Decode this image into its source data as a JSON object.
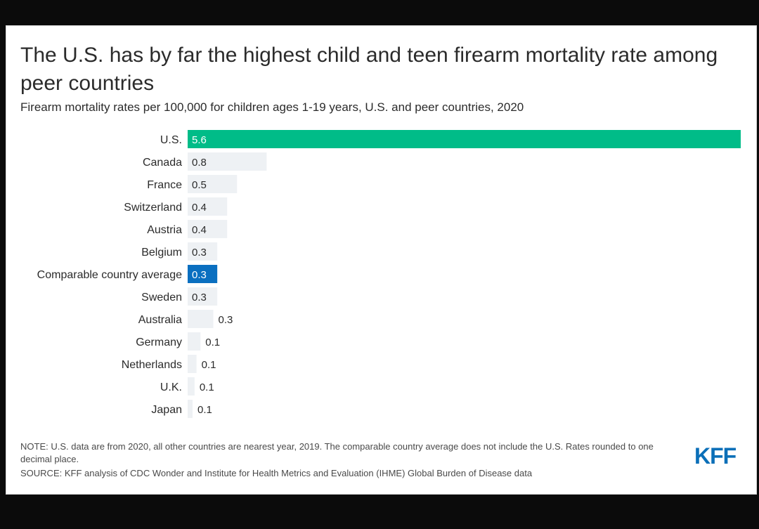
{
  "title": "The U.S. has by far the highest child and teen firearm mortality rate among peer countries",
  "subtitle": "Firearm mortality rates per 100,000 for children ages 1-19 years, U.S. and peer countries, 2020",
  "note": "NOTE: U.S. data are from 2020, all other countries are nearest year, 2019. The comparable country average does not include the U.S. Rates rounded to one decimal place.",
  "source": "SOURCE: KFF analysis of CDC Wonder and Institute for Health Metrics and Evaluation (IHME) Global Burden of Disease data",
  "logo": "KFF",
  "colors": {
    "highlight_us": "#00bc88",
    "highlight_avg": "#0a6fc0",
    "default_bar": "#eef1f4",
    "text": "#2b2b2b",
    "logo": "#0b6fb8"
  },
  "chart_data": {
    "type": "bar",
    "orientation": "horizontal",
    "categories": [
      "U.S.",
      "Canada",
      "France",
      "Switzerland",
      "Austria",
      "Belgium",
      "Comparable country average",
      "Sweden",
      "Australia",
      "Germany",
      "Netherlands",
      "U.K.",
      "Japan"
    ],
    "values": [
      5.6,
      0.8,
      0.5,
      0.4,
      0.4,
      0.3,
      0.3,
      0.3,
      0.26,
      0.13,
      0.09,
      0.07,
      0.05
    ],
    "value_labels": [
      "5.6",
      "0.8",
      "0.5",
      "0.4",
      "0.4",
      "0.3",
      "0.3",
      "0.3",
      "0.3",
      "0.1",
      "0.1",
      "0.1",
      "0.1"
    ],
    "highlights": {
      "U.S.": "highlight_us",
      "Comparable country average": "highlight_avg"
    },
    "xlim": [
      0,
      5.6
    ],
    "grid": false,
    "legend": "none"
  }
}
